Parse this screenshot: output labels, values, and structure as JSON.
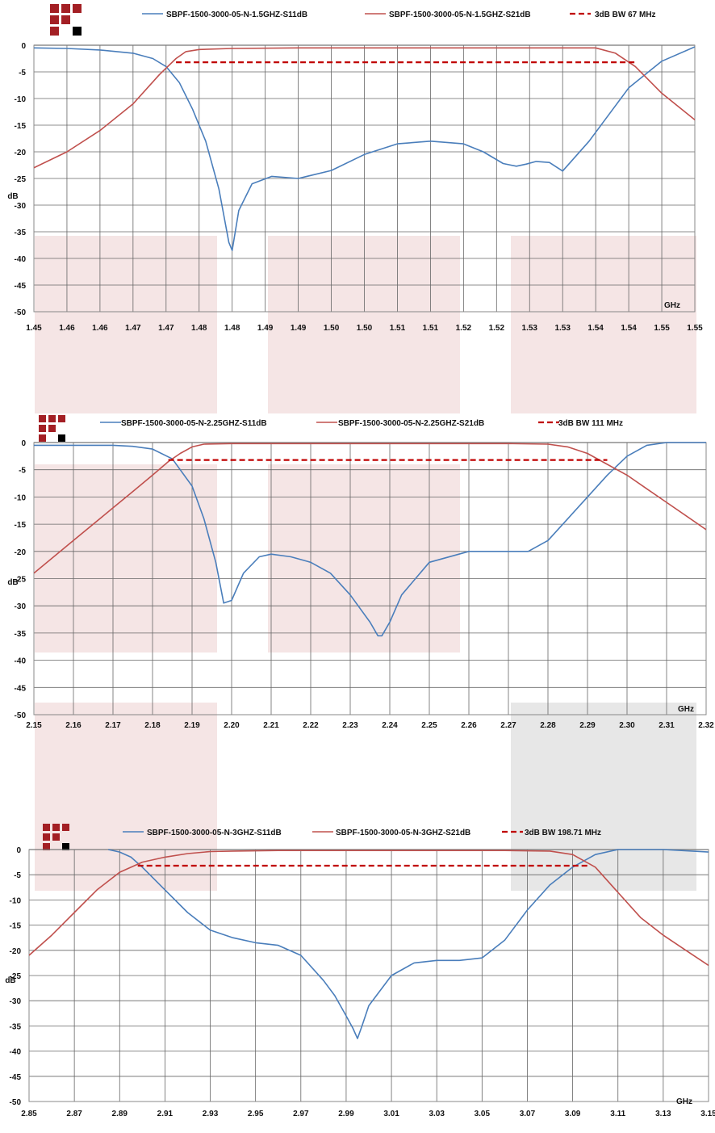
{
  "colors": {
    "s11": "#4a7ebb",
    "s21": "#c0504d",
    "bw": "#c00000",
    "grid": "#666666",
    "plot_border": "#888888",
    "logo_red": "#a31f24",
    "logo_black": "#000000",
    "watermark_pink": "#e8c6c6",
    "watermark_gray": "#cfcfcf"
  },
  "chart_data": [
    {
      "type": "line",
      "x_unit": "GHz",
      "ylabel": "dB",
      "xlim": [
        1.45,
        1.55
      ],
      "ylim": [
        -50,
        0
      ],
      "y_ticks": [
        0,
        -5,
        -10,
        -15,
        -20,
        -25,
        -30,
        -35,
        -40,
        -45,
        -50
      ],
      "x_tick_labels": [
        "1.45",
        "1.46",
        "1.46",
        "1.47",
        "1.47",
        "1.48",
        "1.48",
        "1.49",
        "1.49",
        "1.50",
        "1.50",
        "1.51",
        "1.51",
        "1.52",
        "1.52",
        "1.53",
        "1.53",
        "1.54",
        "1.54",
        "1.55",
        "1.55"
      ],
      "grid": true,
      "legend_position": "top",
      "series": [
        {
          "name": "SBPF-1500-3000-05-N-1.5GHZ-S11dB",
          "color_key": "s11",
          "style": "solid",
          "x": [
            1.45,
            1.455,
            1.46,
            1.465,
            1.468,
            1.47,
            1.472,
            1.474,
            1.476,
            1.478,
            1.4795,
            1.48,
            1.481,
            1.483,
            1.486,
            1.49,
            1.495,
            1.5,
            1.505,
            1.51,
            1.515,
            1.518,
            1.521,
            1.523,
            1.5245,
            1.526,
            1.528,
            1.53,
            1.534,
            1.54,
            1.545,
            1.55
          ],
          "y": [
            -0.5,
            -0.6,
            -0.9,
            -1.5,
            -2.5,
            -4,
            -7,
            -12,
            -18,
            -27,
            -37,
            -38.5,
            -31,
            -26,
            -24.6,
            -25,
            -23.5,
            -20.5,
            -18.5,
            -18,
            -18.5,
            -20,
            -22.2,
            -22.7,
            -22.3,
            -21.8,
            -22,
            -23.6,
            -18,
            -8,
            -3,
            -0.3
          ]
        },
        {
          "name": "SBPF-1500-3000-05-N-1.5GHZ-S21dB",
          "color_key": "s21",
          "style": "solid",
          "x": [
            1.45,
            1.455,
            1.46,
            1.465,
            1.469,
            1.4715,
            1.473,
            1.475,
            1.48,
            1.49,
            1.5,
            1.51,
            1.52,
            1.53,
            1.535,
            1.538,
            1.541,
            1.545,
            1.55,
            1.555
          ],
          "y": [
            -23,
            -20,
            -16,
            -11,
            -5.5,
            -2.5,
            -1.2,
            -0.8,
            -0.6,
            -0.5,
            -0.5,
            -0.5,
            -0.5,
            -0.5,
            -0.5,
            -1.5,
            -4,
            -9,
            -14,
            -19
          ]
        },
        {
          "name": "3dB BW 67 MHz",
          "color_key": "bw",
          "style": "dashed",
          "x": [
            1.4715,
            1.541
          ],
          "y": [
            -3.2,
            -3.2
          ]
        }
      ]
    },
    {
      "type": "line",
      "x_unit": "GHz",
      "ylabel": "dB",
      "xlim": [
        2.15,
        2.32
      ],
      "ylim": [
        -50,
        0
      ],
      "y_ticks": [
        0,
        -5,
        -10,
        -15,
        -20,
        -25,
        -30,
        -35,
        -40,
        -45,
        -50
      ],
      "x_tick_labels": [
        "2.15",
        "2.16",
        "2.17",
        "2.18",
        "2.19",
        "2.20",
        "2.21",
        "2.22",
        "2.23",
        "2.24",
        "2.25",
        "2.26",
        "2.27",
        "2.28",
        "2.29",
        "2.30",
        "2.31",
        "2.32"
      ],
      "grid": true,
      "legend_position": "top",
      "series": [
        {
          "name": "SBPF-1500-3000-05-N-2.25GHZ-S11dB",
          "color_key": "s11",
          "style": "solid",
          "x": [
            2.15,
            2.16,
            2.17,
            2.175,
            2.18,
            2.185,
            2.19,
            2.193,
            2.196,
            2.198,
            2.2,
            2.203,
            2.207,
            2.21,
            2.215,
            2.22,
            2.225,
            2.23,
            2.235,
            2.237,
            2.238,
            2.24,
            2.243,
            2.25,
            2.26,
            2.27,
            2.275,
            2.28,
            2.285,
            2.29,
            2.295,
            2.3,
            2.305,
            2.31,
            2.32
          ],
          "y": [
            -0.5,
            -0.5,
            -0.5,
            -0.7,
            -1.2,
            -3,
            -8,
            -14,
            -22,
            -29.5,
            -29,
            -24,
            -21,
            -20.5,
            -21,
            -22,
            -24,
            -28,
            -33,
            -35.5,
            -35.5,
            -33,
            -28,
            -22,
            -20,
            -20,
            -20,
            -18,
            -14,
            -10,
            -6,
            -2.5,
            -0.5,
            0,
            0
          ]
        },
        {
          "name": "SBPF-1500-3000-05-N-2.25GHZ-S21dB",
          "color_key": "s21",
          "style": "solid",
          "x": [
            2.15,
            2.16,
            2.17,
            2.175,
            2.18,
            2.184,
            2.187,
            2.19,
            2.193,
            2.2,
            2.21,
            2.22,
            2.23,
            2.24,
            2.25,
            2.26,
            2.27,
            2.28,
            2.285,
            2.29,
            2.295,
            2.3,
            2.305,
            2.31,
            2.32
          ],
          "y": [
            -24,
            -18,
            -12,
            -9,
            -6,
            -3.5,
            -2,
            -0.8,
            -0.3,
            -0.2,
            -0.2,
            -0.2,
            -0.2,
            -0.2,
            -0.2,
            -0.2,
            -0.2,
            -0.3,
            -0.8,
            -2,
            -4,
            -6,
            -8.5,
            -11,
            -16
          ]
        },
        {
          "name": "3dB BW 111 MHz",
          "color_key": "bw",
          "style": "dashed",
          "x": [
            2.184,
            2.295
          ],
          "y": [
            -3.2,
            -3.2
          ]
        }
      ]
    },
    {
      "type": "line",
      "x_unit": "GHz",
      "ylabel": "dB",
      "xlim": [
        2.85,
        3.15
      ],
      "ylim": [
        -50,
        0
      ],
      "y_ticks": [
        0,
        -5,
        -10,
        -15,
        -20,
        -25,
        -30,
        -35,
        -40,
        -45,
        -50
      ],
      "x_tick_labels": [
        "2.85",
        "2.87",
        "2.89",
        "2.91",
        "2.93",
        "2.95",
        "2.97",
        "2.99",
        "3.01",
        "3.03",
        "3.05",
        "3.07",
        "3.09",
        "3.11",
        "3.13",
        "3.15"
      ],
      "grid": true,
      "legend_position": "top",
      "series": [
        {
          "name": "SBPF-1500-3000-05-N-3GHZ-S11dB",
          "color_key": "s11",
          "style": "solid",
          "x": [
            2.885,
            2.89,
            2.895,
            2.9,
            2.91,
            2.92,
            2.93,
            2.94,
            2.95,
            2.96,
            2.97,
            2.98,
            2.985,
            2.99,
            2.993,
            2.995,
            2.997,
            3.0,
            3.01,
            3.02,
            3.03,
            3.04,
            3.05,
            3.06,
            3.07,
            3.08,
            3.09,
            3.1,
            3.11,
            3.12,
            3.13,
            3.15
          ],
          "y": [
            0,
            -0.5,
            -1.5,
            -3.5,
            -8,
            -12.5,
            -16,
            -17.5,
            -18.5,
            -19,
            -21,
            -26,
            -29,
            -33,
            -35.5,
            -37.5,
            -35,
            -31,
            -25,
            -22.5,
            -22,
            -22,
            -21.5,
            -18,
            -12,
            -7,
            -3.5,
            -1,
            0,
            0,
            0,
            -0.5
          ]
        },
        {
          "name": "SBPF-1500-3000-05-N-3GHZ-S21dB",
          "color_key": "s21",
          "style": "solid",
          "x": [
            2.85,
            2.86,
            2.87,
            2.88,
            2.89,
            2.9,
            2.91,
            2.92,
            2.93,
            2.94,
            2.96,
            2.98,
            3.0,
            3.02,
            3.04,
            3.06,
            3.08,
            3.09,
            3.1,
            3.11,
            3.12,
            3.13,
            3.14,
            3.15
          ],
          "y": [
            -21,
            -17,
            -12.5,
            -8,
            -4.5,
            -2.5,
            -1.5,
            -0.8,
            -0.4,
            -0.3,
            -0.2,
            -0.2,
            -0.2,
            -0.2,
            -0.2,
            -0.2,
            -0.3,
            -1,
            -3.5,
            -8.5,
            -13.5,
            -17,
            -20,
            -23
          ]
        },
        {
          "name": "3dB BW 198.71 MHz",
          "color_key": "bw",
          "style": "dashed",
          "x": [
            2.898,
            3.097
          ],
          "y": [
            -3.2,
            -3.2
          ]
        }
      ]
    }
  ]
}
